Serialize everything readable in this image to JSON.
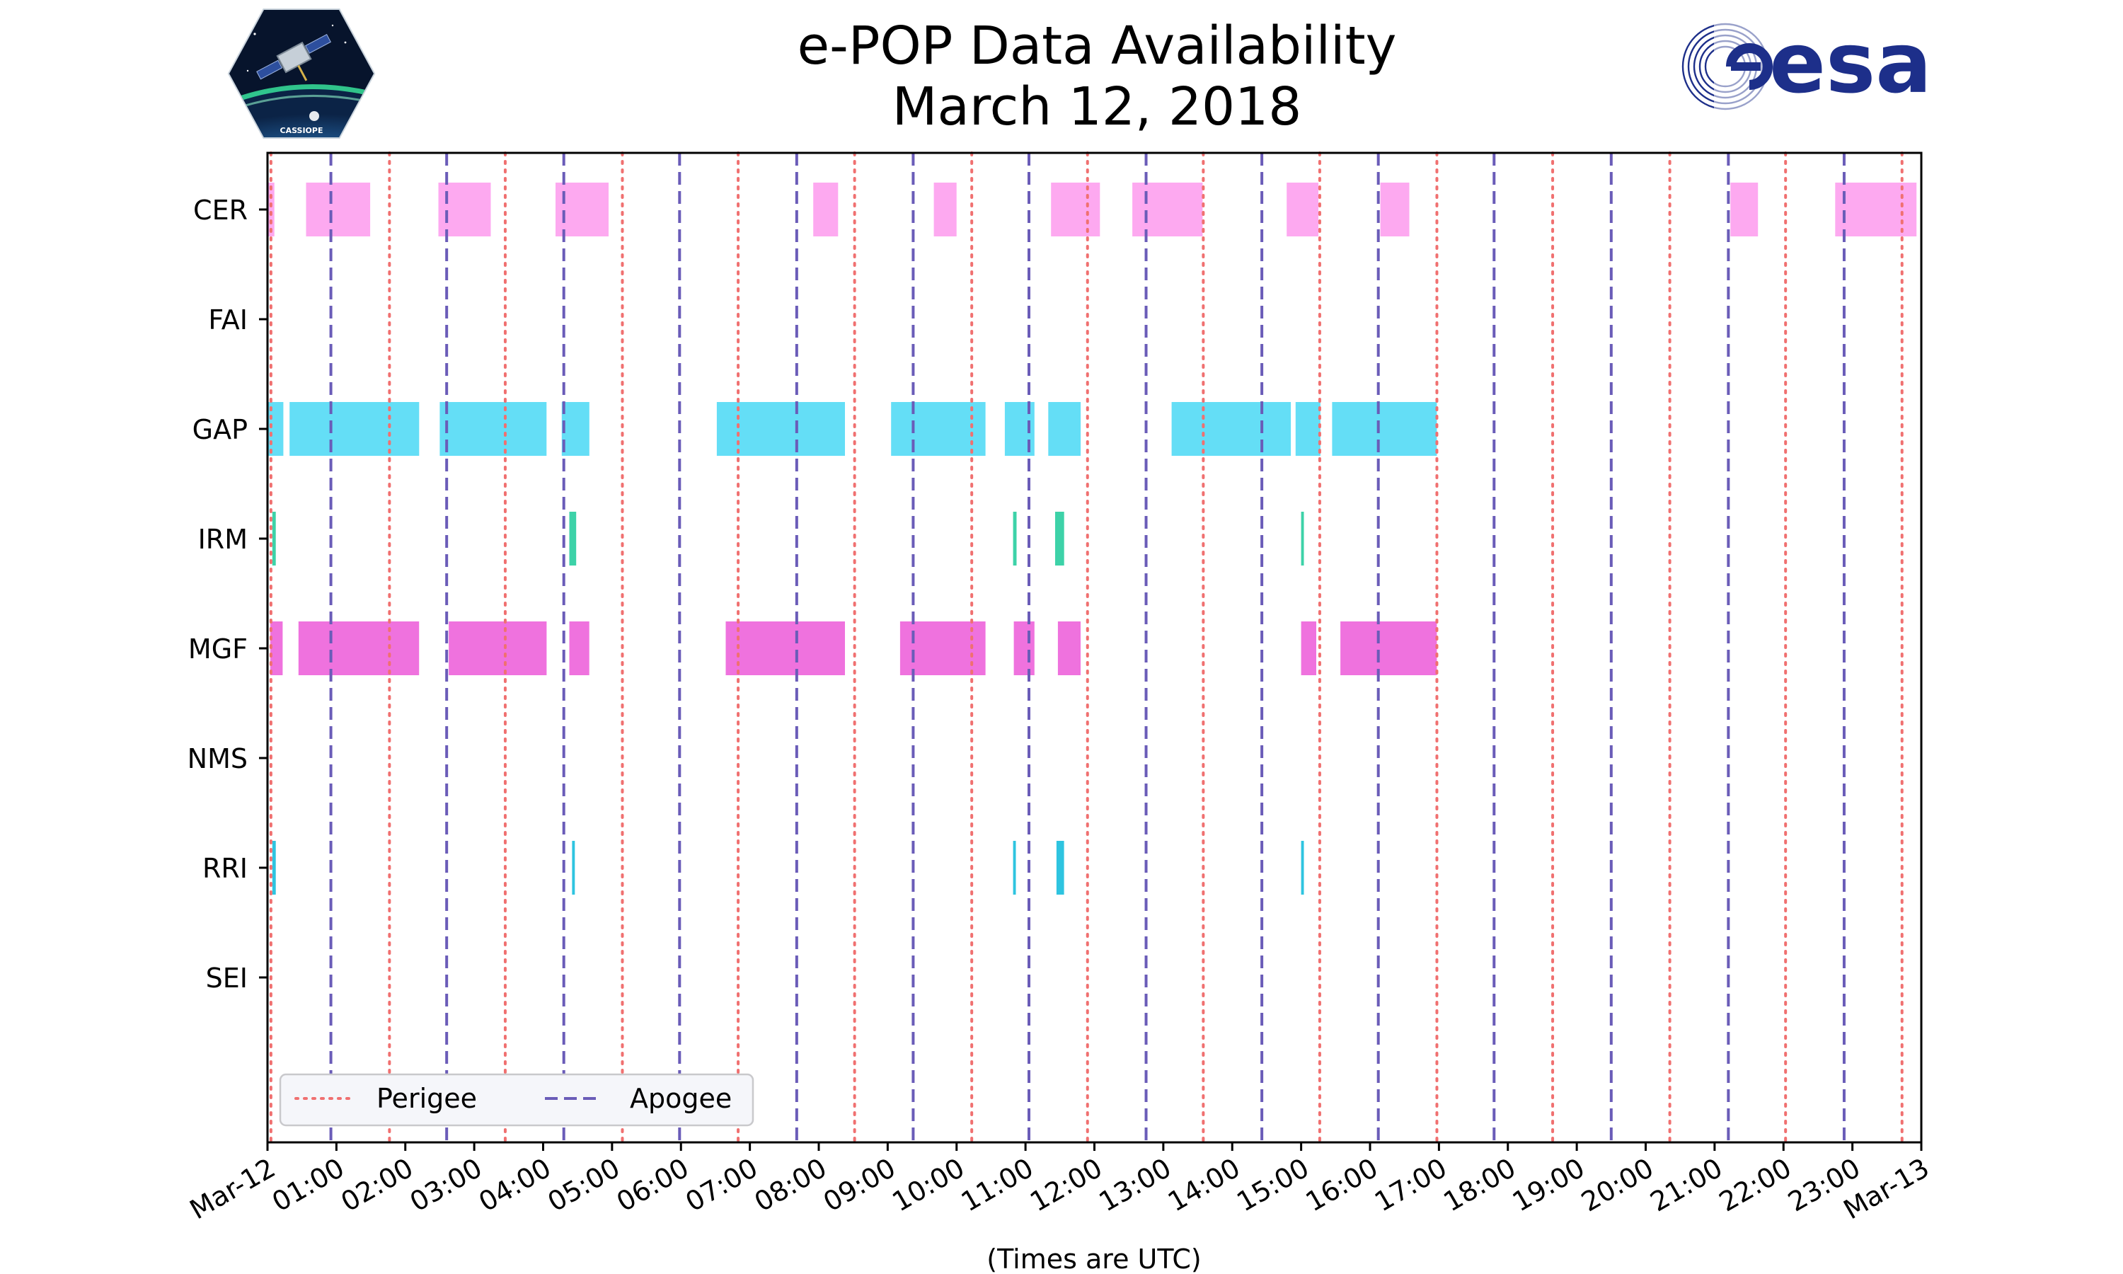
{
  "header": {
    "title_line1": "e-POP Data Availability",
    "title_line2": "March 12, 2018",
    "left_logo_text": "CASSIOPE",
    "right_logo_text": "esa"
  },
  "chart_data": {
    "type": "timeline",
    "title": "e-POP Data Availability March 12, 2018",
    "xlabel": "(Times are UTC)",
    "ylabel": "",
    "xlim": [
      0,
      24
    ],
    "x_unit": "hours UTC",
    "x_tick_labels": [
      "Mar-12",
      "01:00",
      "02:00",
      "03:00",
      "04:00",
      "05:00",
      "06:00",
      "07:00",
      "08:00",
      "09:00",
      "10:00",
      "11:00",
      "12:00",
      "13:00",
      "14:00",
      "15:00",
      "16:00",
      "17:00",
      "18:00",
      "19:00",
      "20:00",
      "21:00",
      "22:00",
      "23:00",
      "Mar-13"
    ],
    "instruments": [
      "CER",
      "FAI",
      "GAP",
      "IRM",
      "MGF",
      "NMS",
      "RRI",
      "SEI"
    ],
    "colors": {
      "CER": "#fda9f0",
      "FAI": "#cccccc",
      "GAP": "#64def6",
      "IRM": "#3dd2a8",
      "MGF": "#ef72de",
      "NMS": "#cccccc",
      "RRI": "#2ec4e0",
      "SEI": "#cccccc",
      "perigee": "#f07070",
      "apogee": "#6a5cb8"
    },
    "intervals": {
      "CER": [
        [
          0.0,
          0.1
        ],
        [
          0.56,
          1.49
        ],
        [
          2.48,
          3.24
        ],
        [
          4.18,
          4.95
        ],
        [
          7.92,
          8.28
        ],
        [
          9.67,
          10.0
        ],
        [
          11.37,
          12.08
        ],
        [
          12.55,
          13.57
        ],
        [
          14.79,
          15.25
        ],
        [
          16.15,
          16.57
        ],
        [
          21.23,
          21.63
        ],
        [
          22.75,
          23.93
        ]
      ],
      "FAI": [],
      "GAP": [
        [
          0.0,
          0.23
        ],
        [
          0.32,
          2.2
        ],
        [
          2.5,
          4.05
        ],
        [
          4.27,
          4.67
        ],
        [
          6.52,
          8.38
        ],
        [
          9.05,
          10.42
        ],
        [
          10.7,
          11.13
        ],
        [
          11.33,
          11.8
        ],
        [
          13.12,
          14.85
        ],
        [
          14.92,
          15.28
        ],
        [
          15.45,
          16.97
        ]
      ],
      "IRM": [
        [
          0.07,
          0.12
        ],
        [
          4.38,
          4.48
        ],
        [
          10.82,
          10.87
        ],
        [
          11.43,
          11.56
        ],
        [
          15.0,
          15.04
        ]
      ],
      "MGF": [
        [
          0.04,
          0.22
        ],
        [
          0.45,
          2.2
        ],
        [
          2.63,
          4.05
        ],
        [
          4.38,
          4.67
        ],
        [
          6.65,
          8.38
        ],
        [
          9.18,
          10.42
        ],
        [
          10.83,
          11.13
        ],
        [
          11.47,
          11.8
        ],
        [
          15.0,
          15.22
        ],
        [
          15.57,
          16.97
        ]
      ],
      "NMS": [],
      "RRI": [
        [
          0.07,
          0.12
        ],
        [
          4.42,
          4.46
        ],
        [
          10.82,
          10.86
        ],
        [
          11.45,
          11.56
        ],
        [
          15.0,
          15.04
        ]
      ],
      "SEI": []
    },
    "perigee_times": [
      0.05,
      1.77,
      3.45,
      5.15,
      6.83,
      8.52,
      10.22,
      11.9,
      13.58,
      15.27,
      16.97,
      18.65,
      20.35,
      22.03,
      23.72
    ],
    "apogee_times": [
      0.92,
      2.6,
      4.3,
      5.98,
      7.68,
      9.37,
      11.05,
      12.75,
      14.43,
      16.12,
      17.8,
      19.5,
      21.2,
      22.88
    ],
    "legend": {
      "position": "lower-left",
      "entries": [
        "Perigee",
        "Apogee"
      ]
    }
  }
}
